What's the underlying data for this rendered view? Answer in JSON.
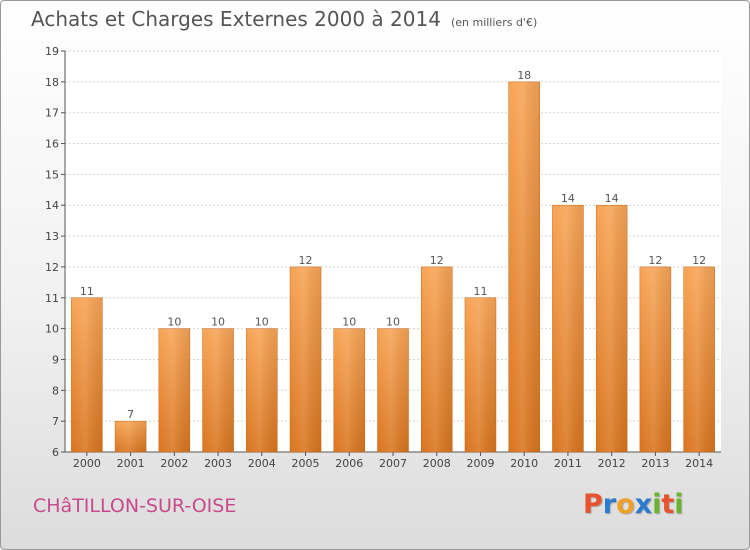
{
  "chart_data": {
    "type": "bar",
    "title": "Achats et Charges Externes 2000 à 2014",
    "subtitle": "(en milliers d'€)",
    "xlabel": "",
    "ylabel": "",
    "categories": [
      "2000",
      "2001",
      "2002",
      "2003",
      "2004",
      "2005",
      "2006",
      "2007",
      "2008",
      "2009",
      "2010",
      "2011",
      "2012",
      "2013",
      "2014"
    ],
    "values": [
      11,
      7,
      10,
      10,
      10,
      12,
      10,
      10,
      12,
      11,
      18,
      14,
      14,
      12,
      12
    ],
    "data_labels": [
      "11",
      "7",
      "10",
      "10",
      "10",
      "12",
      "10",
      "10",
      "12",
      "11",
      "18",
      "14",
      "14",
      "12",
      "12"
    ],
    "ylim": [
      6,
      19
    ],
    "yticks": [
      6,
      7,
      8,
      9,
      10,
      11,
      12,
      13,
      14,
      15,
      16,
      17,
      18,
      19
    ],
    "grid": true,
    "legend": "none",
    "bar_color": "#f0913a"
  },
  "footer": {
    "city": "CHâTILLON-SUR-OISE",
    "logo_letters": [
      "P",
      "r",
      "o",
      "x",
      "i",
      "t",
      "i"
    ],
    "logo_colors": [
      "#e8522c",
      "#2a7bd0",
      "#f0a028",
      "#2a7bd0",
      "#6ab42d",
      "#e8522c",
      "#6ab42d"
    ]
  }
}
